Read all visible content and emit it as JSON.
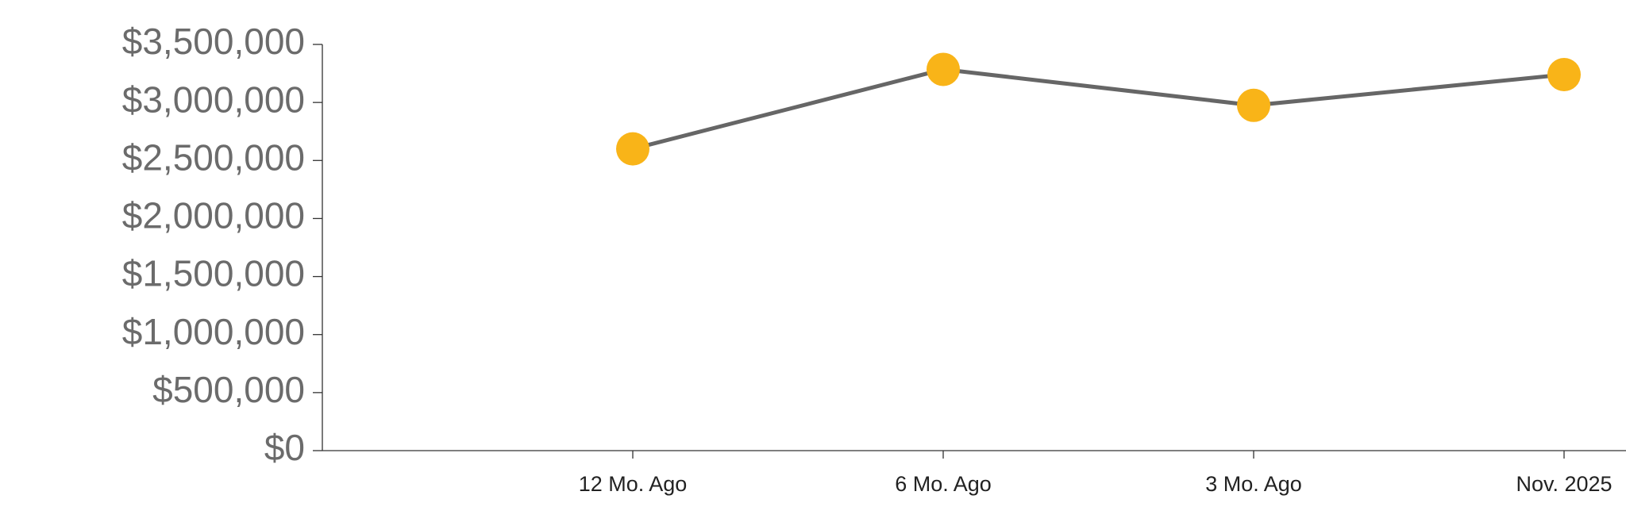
{
  "chart_data": {
    "type": "line",
    "categories": [
      "12 Mo. Ago",
      "6 Mo. Ago",
      "3 Mo. Ago",
      "Nov. 2025"
    ],
    "series": [
      {
        "values": [
          2600000,
          3285000,
          2975000,
          3240000
        ],
        "color": "#666666",
        "marker_color": "#f9b418"
      }
    ],
    "ylim": [
      0,
      3500000
    ],
    "yticks": [
      {
        "value": 0,
        "label": "$0"
      },
      {
        "value": 500000,
        "label": "$500,000"
      },
      {
        "value": 1000000,
        "label": "$1,000,000"
      },
      {
        "value": 1500000,
        "label": "$1,500,000"
      },
      {
        "value": 2000000,
        "label": "$2,000,000"
      },
      {
        "value": 2500000,
        "label": "$2,500,000"
      },
      {
        "value": 3000000,
        "label": "$3,000,000"
      },
      {
        "value": 3500000,
        "label": "$3,500,000"
      }
    ]
  }
}
